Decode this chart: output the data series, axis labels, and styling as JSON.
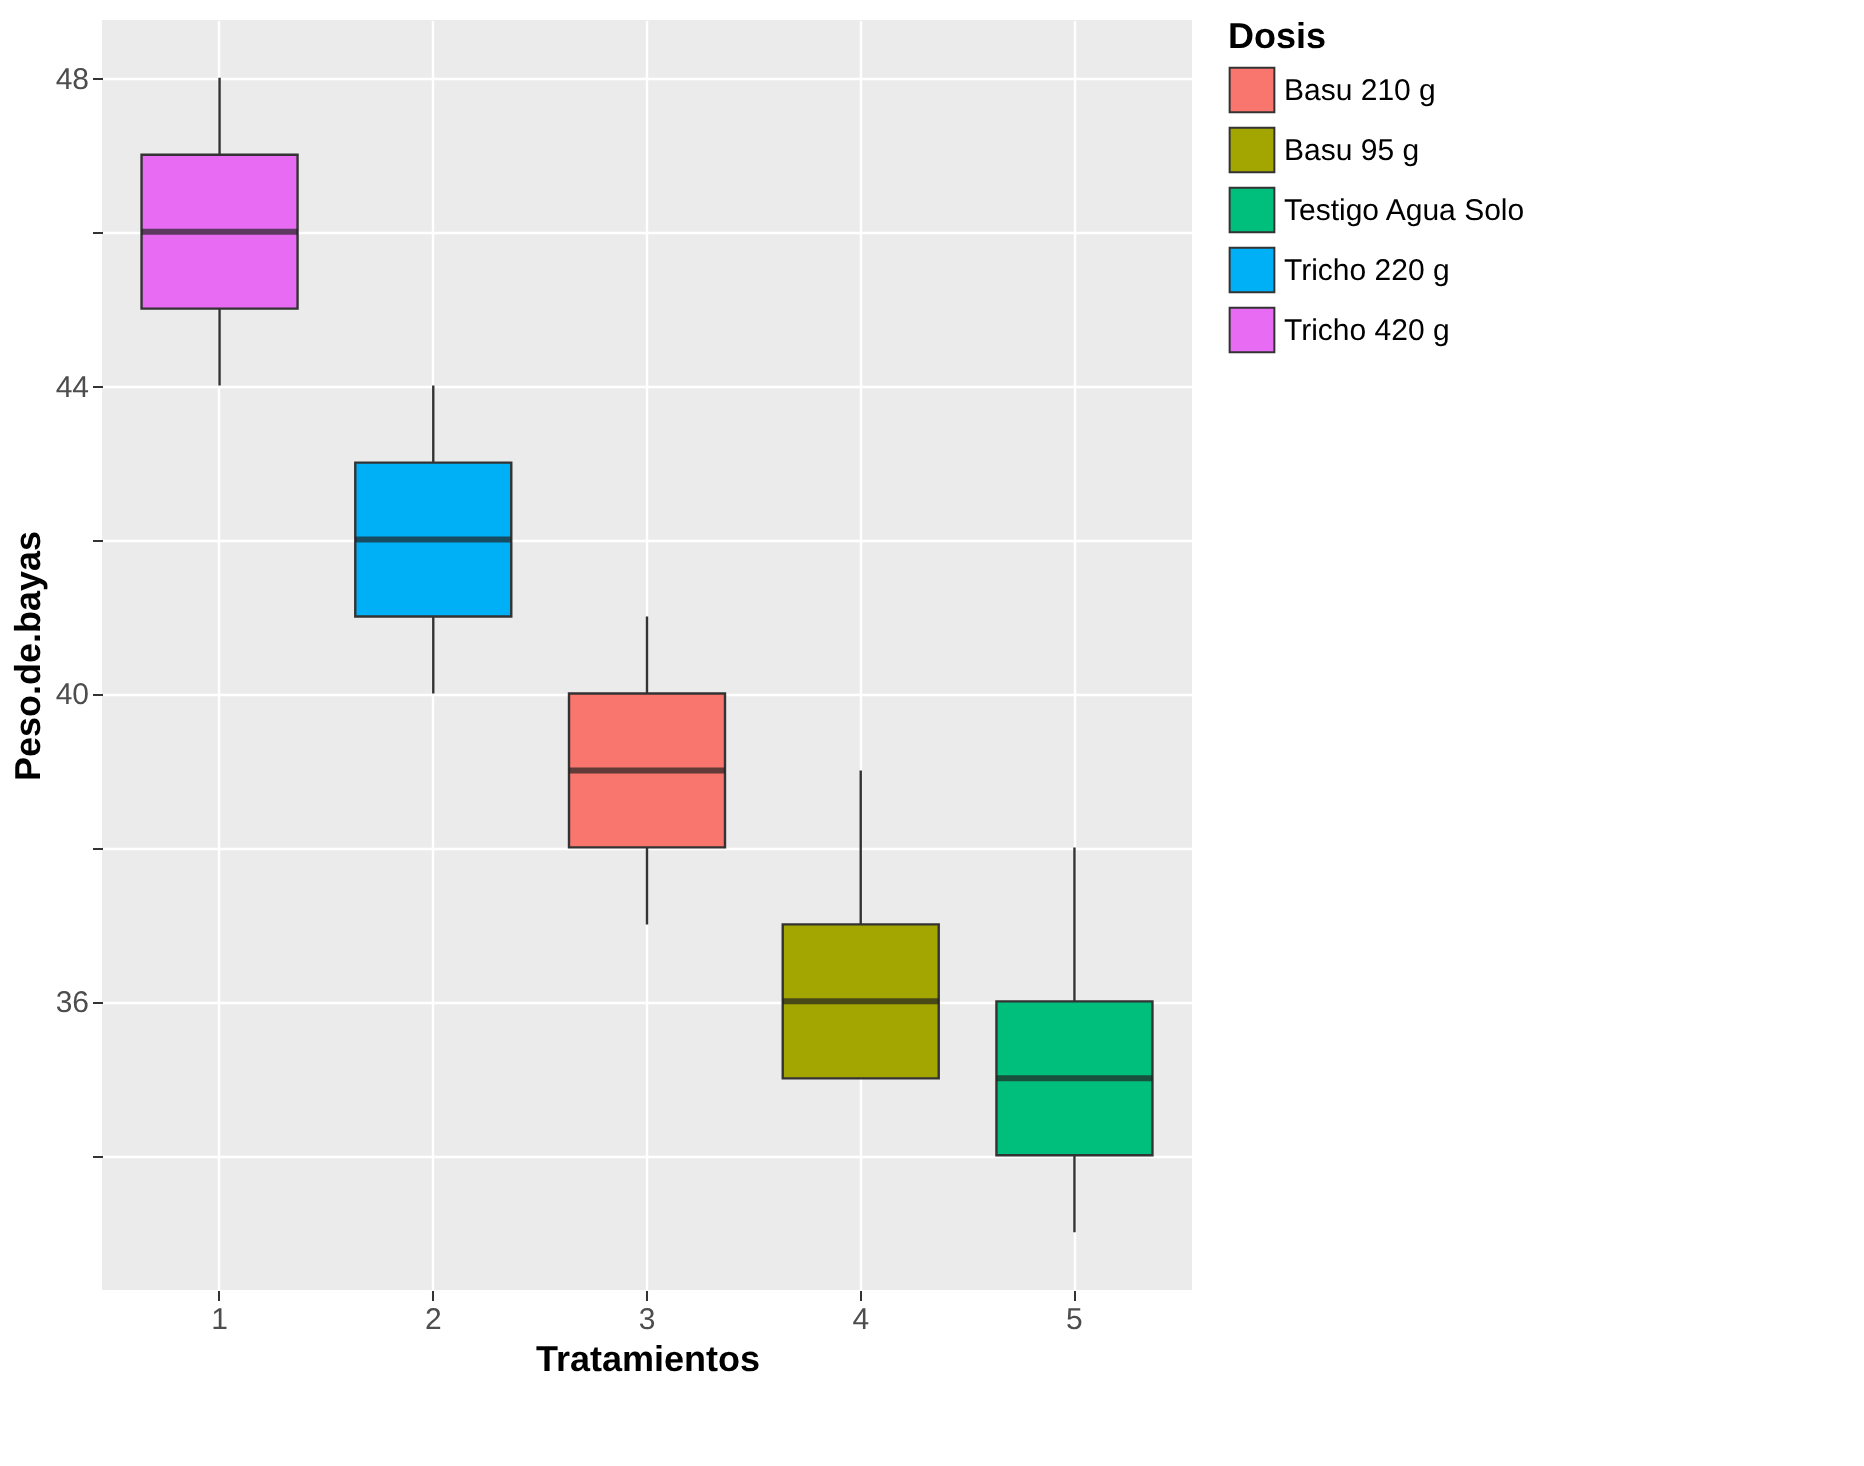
{
  "chart_data": {
    "type": "box",
    "xlabel": "Tratamientos",
    "ylabel": "Peso.de.bayas",
    "legend_title": "Dosis",
    "categories": [
      "1",
      "2",
      "3",
      "4",
      "5"
    ],
    "series": [
      {
        "name": "Basu 210 g",
        "color": "#f8766d",
        "x": [
          "3"
        ],
        "boxes": [
          {
            "low": 37,
            "q1": 38,
            "median": 39,
            "q3": 40,
            "high": 41
          }
        ]
      },
      {
        "name": "Basu 95 g",
        "color": "#a3a500",
        "x": [
          "4"
        ],
        "boxes": [
          {
            "low": 35,
            "q1": 35,
            "median": 36,
            "q3": 37,
            "high": 39
          }
        ]
      },
      {
        "name": "Testigo Agua Solo",
        "color": "#00bf7d",
        "x": [
          "5"
        ],
        "boxes": [
          {
            "low": 33,
            "q1": 34,
            "median": 35,
            "q3": 36,
            "high": 38
          }
        ]
      },
      {
        "name": "Tricho 220 g",
        "color": "#00b0f6",
        "x": [
          "2"
        ],
        "boxes": [
          {
            "low": 40,
            "q1": 41,
            "median": 42,
            "q3": 43,
            "high": 44
          }
        ]
      },
      {
        "name": "Tricho 420 g",
        "color": "#e76bf3",
        "x": [
          "1"
        ],
        "boxes": [
          {
            "low": 44,
            "q1": 45,
            "median": 46,
            "q3": 47,
            "high": 48
          }
        ]
      }
    ],
    "ylim": [
      32.25,
      48.75
    ],
    "yticks": [
      {
        "value": 34,
        "label": null
      },
      36,
      {
        "value": 38,
        "label": null
      },
      40,
      {
        "value": 42,
        "label": null
      },
      44,
      {
        "value": 46,
        "label": null
      },
      48
    ],
    "grid": true,
    "legend": "right"
  }
}
